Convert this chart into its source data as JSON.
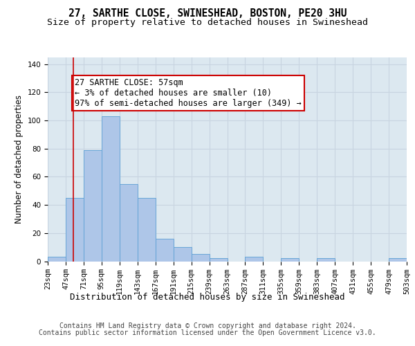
{
  "title_line1": "27, SARTHE CLOSE, SWINESHEAD, BOSTON, PE20 3HU",
  "title_line2": "Size of property relative to detached houses in Swineshead",
  "xlabel": "Distribution of detached houses by size in Swineshead",
  "ylabel": "Number of detached properties",
  "bin_edges": [
    23,
    47,
    71,
    95,
    119,
    143,
    167,
    191,
    215,
    239,
    263,
    287,
    311,
    335,
    359,
    383,
    407,
    431,
    455,
    479,
    503
  ],
  "bar_heights": [
    3,
    45,
    79,
    103,
    55,
    45,
    16,
    10,
    5,
    2,
    0,
    3,
    0,
    2,
    0,
    2,
    0,
    0,
    0,
    2
  ],
  "bar_color": "#aec6e8",
  "bar_edge_color": "#5a9fd4",
  "vline_x": 57,
  "vline_color": "#cc0000",
  "annotation_text": "27 SARTHE CLOSE: 57sqm\n← 3% of detached houses are smaller (10)\n97% of semi-detached houses are larger (349) →",
  "annotation_box_color": "#ffffff",
  "annotation_box_edge": "#cc0000",
  "ylim": [
    0,
    145
  ],
  "yticks": [
    0,
    20,
    40,
    60,
    80,
    100,
    120,
    140
  ],
  "grid_color": "#c8d4e0",
  "bg_color": "#dce8f0",
  "fig_bg_color": "#ffffff",
  "footer_line1": "Contains HM Land Registry data © Crown copyright and database right 2024.",
  "footer_line2": "Contains public sector information licensed under the Open Government Licence v3.0.",
  "title_fontsize": 10.5,
  "subtitle_fontsize": 9.5,
  "ylabel_fontsize": 8.5,
  "xlabel_fontsize": 9,
  "tick_fontsize": 7.5,
  "annotation_fontsize": 8.5,
  "footer_fontsize": 7
}
